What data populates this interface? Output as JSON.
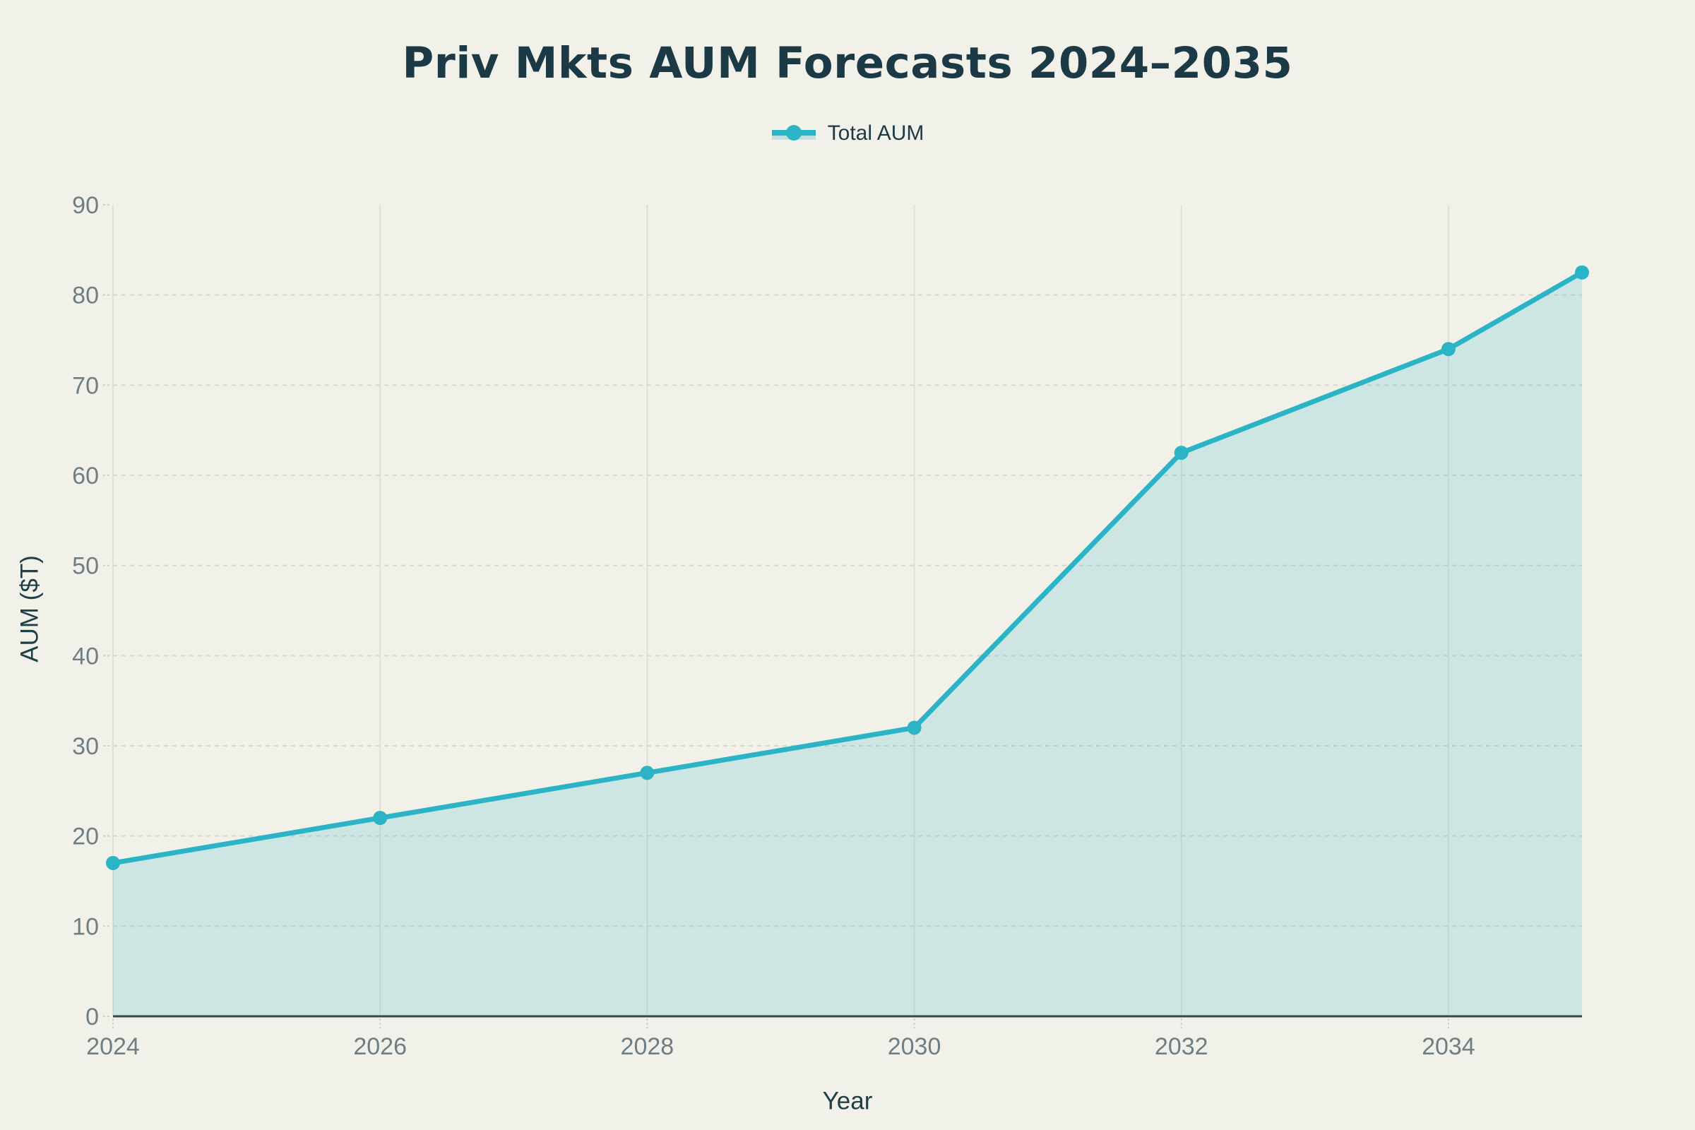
{
  "chart_data": {
    "type": "area",
    "title": "Priv Mkts AUM Forecasts 2024–2035",
    "xlabel": "Year",
    "ylabel": "AUM ($T)",
    "x": [
      2024,
      2026,
      2028,
      2030,
      2032,
      2034,
      2035
    ],
    "series": [
      {
        "name": "Total AUM",
        "values": [
          17,
          22,
          27,
          32,
          62.5,
          74,
          82.5
        ]
      }
    ],
    "xlim": [
      2024,
      2035
    ],
    "ylim": [
      0,
      90
    ],
    "xticks": [
      2024,
      2026,
      2028,
      2030,
      2032,
      2034
    ],
    "yticks": [
      0,
      10,
      20,
      30,
      40,
      50,
      60,
      70,
      80,
      90
    ],
    "grid": true,
    "legend_position": "top",
    "colors": {
      "line": "#2ab4c6",
      "marker": "#2ab4c6",
      "fill": "rgba(42,180,198,0.18)",
      "legend_fill": "rgba(42,180,198,0.25)",
      "grid_h": "#d8d8cf",
      "grid_v": "#e0e0d8",
      "tick_mark": "#c8d0d2",
      "axis_line": "#37454d",
      "tick_label": "#6e7e85",
      "title": "#1b3a45",
      "axis_label": "#1f4049",
      "background": "#f1f1ea"
    }
  }
}
